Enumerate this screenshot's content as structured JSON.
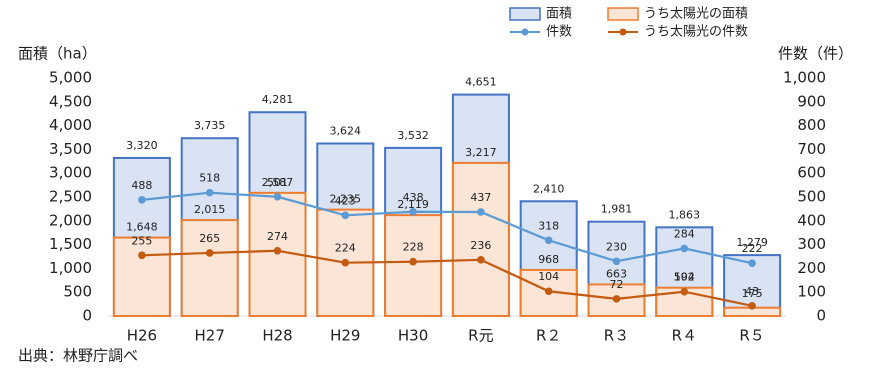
{
  "chart_data": {
    "type": "bar",
    "y_label": "面積（ha）",
    "y2_label": "件数（件）",
    "source": "出典：林野庁調べ",
    "categories": [
      "H26",
      "H27",
      "H28",
      "H29",
      "H30",
      "R元",
      "R２",
      "R３",
      "R４",
      "R５"
    ],
    "series": [
      {
        "name": "面積",
        "type": "bar",
        "color": "#4472c4",
        "fill": "#dae3f3",
        "values": [
          3320,
          3735,
          4281,
          3624,
          3532,
          4651,
          2410,
          1981,
          1863,
          1279
        ],
        "value_labels": [
          "3,320",
          "3,735",
          "4,281",
          "3,624",
          "3,532",
          "4,651",
          "2,410",
          "1,981",
          "1,863",
          "1,279"
        ]
      },
      {
        "name": "うち太陽光の面積",
        "type": "bar",
        "color": "#ed7d31",
        "fill": "#fbe5d6",
        "values": [
          1648,
          2015,
          2587,
          2235,
          2119,
          3217,
          968,
          663,
          594,
          175
        ],
        "value_labels": [
          "1,648",
          "2,015",
          "2,587",
          "2,235",
          "2,119",
          "3,217",
          "968",
          "663",
          "594",
          "175"
        ]
      },
      {
        "name": "件数",
        "type": "line",
        "axis": "y2",
        "color": "#5b9bd5",
        "values": [
          488,
          518,
          501,
          423,
          438,
          437,
          318,
          230,
          284,
          222
        ]
      },
      {
        "name": "うち太陽光の件数",
        "type": "line",
        "axis": "y2",
        "color": "#c55a11",
        "values": [
          255,
          265,
          274,
          224,
          228,
          236,
          104,
          72,
          102,
          43
        ]
      }
    ],
    "ylim": [
      0,
      5000
    ],
    "yticks": [
      0,
      500,
      {
        "value": 1000,
        "label": "1,000"
      },
      {
        "value": 1500,
        "label": "1,500"
      },
      {
        "value": 2000,
        "label": "2,000"
      },
      {
        "value": 2500,
        "label": "2,500"
      },
      {
        "value": 3000,
        "label": "3,000"
      },
      {
        "value": 3500,
        "label": "3,500"
      },
      {
        "value": 4000,
        "label": "4,000"
      },
      {
        "value": 4500,
        "label": "4,500"
      },
      {
        "value": 5000,
        "label": "5,000"
      }
    ],
    "y2lim": [
      0,
      1000
    ],
    "y2ticks": [
      0,
      100,
      200,
      300,
      400,
      500,
      600,
      700,
      800,
      900,
      {
        "value": 1000,
        "label": "1,000"
      }
    ]
  }
}
